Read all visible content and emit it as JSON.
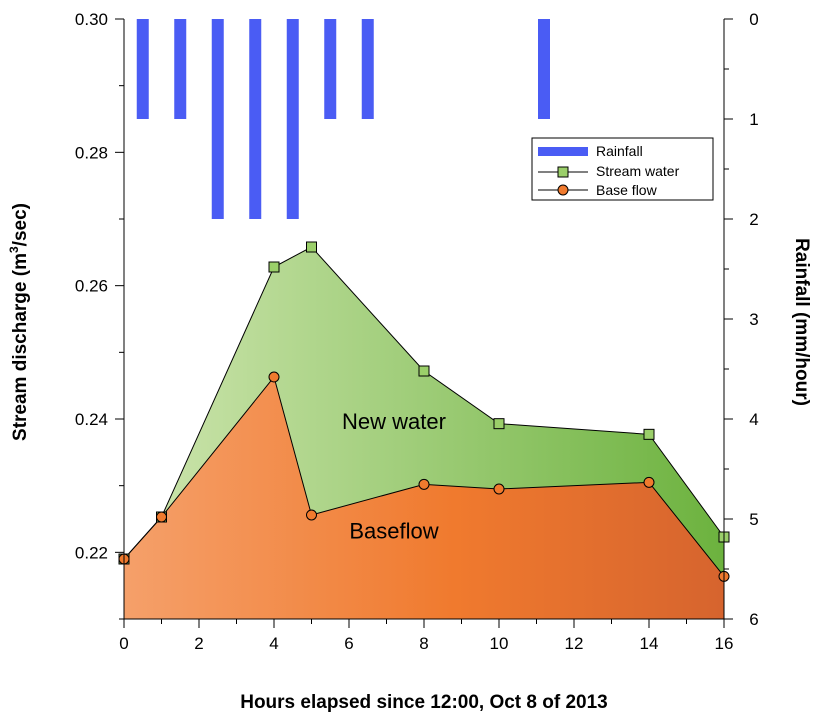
{
  "chart_data": {
    "type": "area",
    "x_ticks": [
      "0",
      "2",
      "4",
      "6",
      "8",
      "10",
      "12",
      "14",
      "16"
    ],
    "y_left_ticks": [
      "0.22",
      "0.24",
      "0.26",
      "0.28",
      "0.30"
    ],
    "y_right_ticks": [
      "0",
      "1",
      "2",
      "3",
      "4",
      "5",
      "6"
    ],
    "xlabel": "Hours elapsed since 12:00, Oct 8 of 2013",
    "ylabel_left_prefix": "Stream discharge (m",
    "ylabel_left_sup": "3",
    "ylabel_left_suffix": "/sec)",
    "ylabel_right": "Rainfall (mm/hour)",
    "xlim": [
      0,
      16
    ],
    "ylim_left": [
      0.21,
      0.3
    ],
    "ylim_right": [
      6,
      0
    ],
    "right_axis_inverted": true,
    "series": [
      {
        "name": "Rainfall",
        "kind": "bar",
        "axis": "right",
        "color": "#4a5cf4",
        "x": [
          0.5,
          1.5,
          2.5,
          3.5,
          4.5,
          5.5,
          6.5,
          11.2
        ],
        "values": [
          1,
          1,
          2,
          2,
          2,
          1,
          1,
          1
        ]
      },
      {
        "name": "Stream water",
        "kind": "line",
        "axis": "left",
        "marker": "square",
        "color": "#9bcf6a",
        "x": [
          0,
          1,
          4,
          5,
          8,
          10,
          14,
          16
        ],
        "values": [
          0.219,
          0.2253,
          0.2628,
          0.2658,
          0.2472,
          0.2393,
          0.2377,
          0.2223
        ]
      },
      {
        "name": "Base flow",
        "kind": "line",
        "axis": "left",
        "marker": "circle",
        "color": "#f07a2e",
        "x": [
          0,
          1,
          4,
          5,
          8,
          10,
          14,
          16
        ],
        "values": [
          0.219,
          0.2253,
          0.2463,
          0.2256,
          0.2302,
          0.2295,
          0.2305,
          0.2164
        ]
      }
    ],
    "annotations": [
      {
        "text": "New water",
        "x": 8.0,
        "y": 0.2385
      },
      {
        "text": "Baseflow",
        "x": 8.0,
        "y": 0.2221
      }
    ],
    "legend_position": "top-right",
    "grid": false,
    "colors": {
      "rain": "#4a5cf4",
      "new_water_light": "#cfe6b0",
      "new_water_dark": "#6cb23e",
      "base_light": "#f5a06a",
      "base_mid": "#f07a2e",
      "base_dark": "#d6642e",
      "marker_square": "#9bcf6a",
      "marker_circle": "#f07a2e"
    }
  }
}
